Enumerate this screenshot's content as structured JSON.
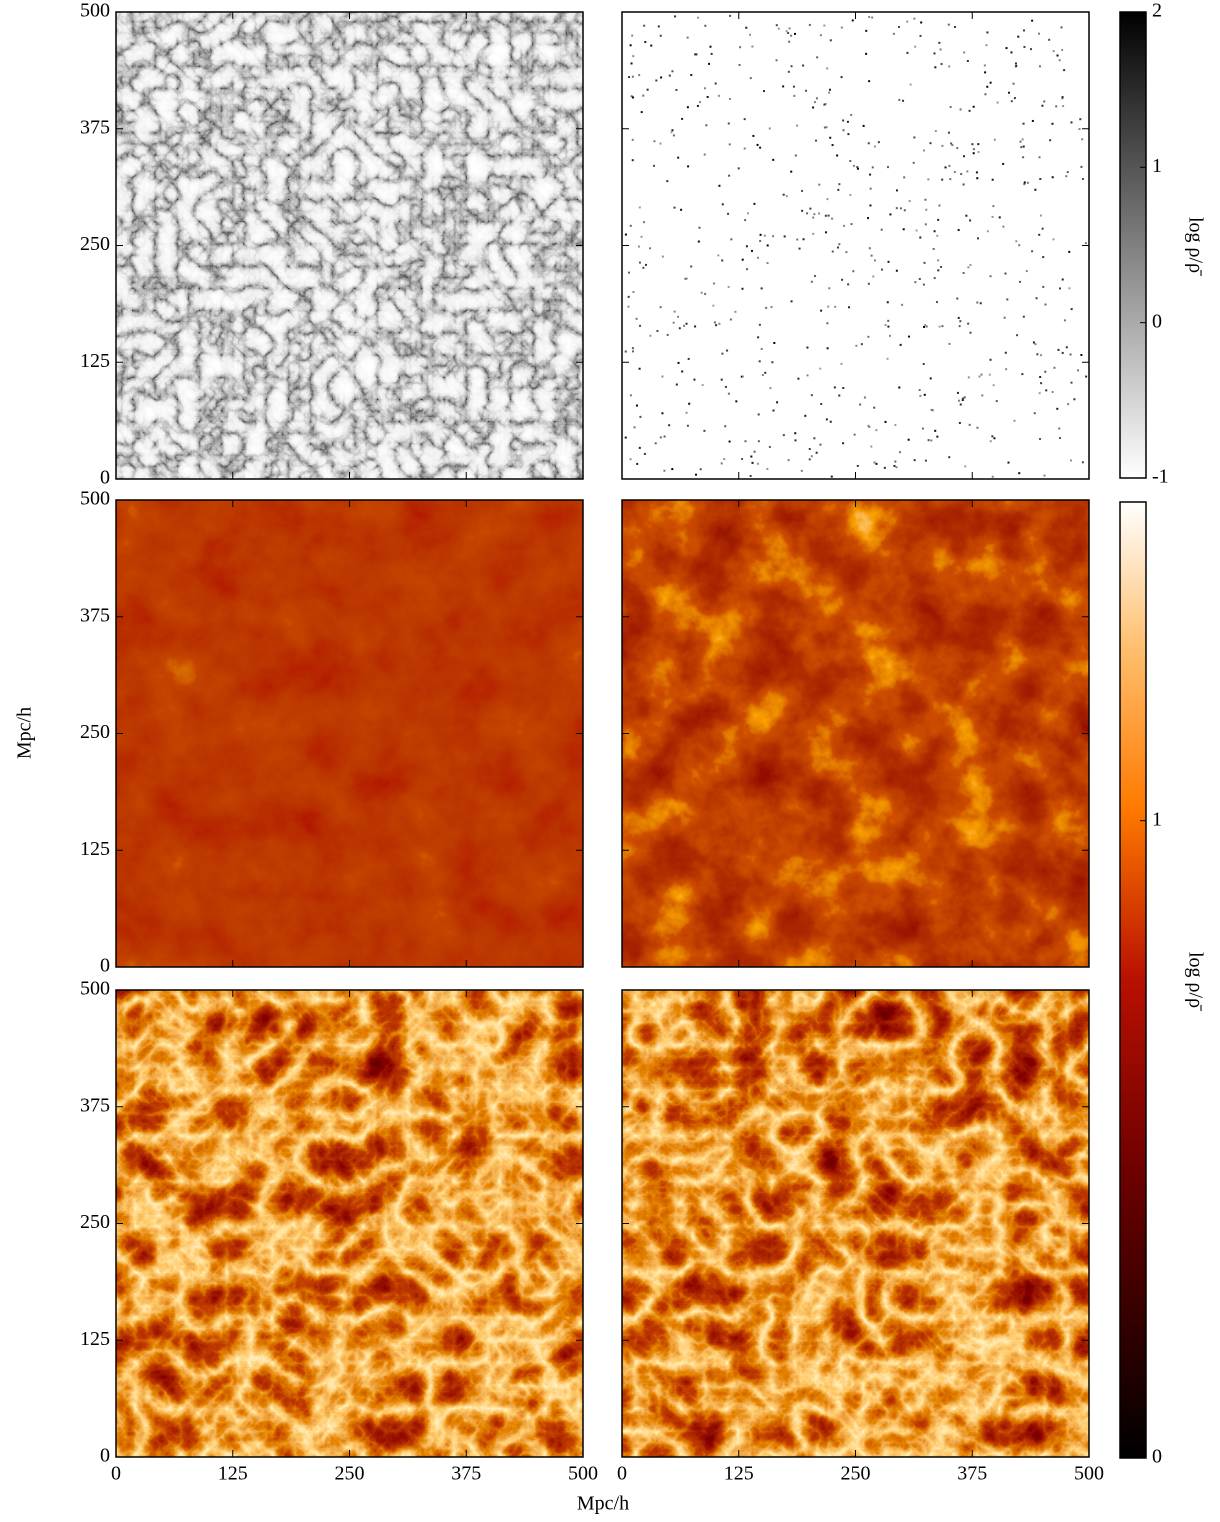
{
  "chart_data": {
    "type": "heatmap-grid",
    "xlabel": "Mpc/h",
    "ylabel": "Mpc/h",
    "xlim": [
      0,
      500
    ],
    "ylim": [
      0,
      500
    ],
    "xticks": [
      0,
      125,
      250,
      375,
      500
    ],
    "yticks": [
      0,
      125,
      250,
      375,
      500
    ],
    "colorbars": [
      {
        "label": "log ρ/ρ̄",
        "lim": [
          -1,
          2
        ],
        "ticks": [
          -1,
          0,
          1,
          2
        ],
        "colormap": "gray"
      },
      {
        "label": "log ρ/ρ̄",
        "lim": [
          0,
          1.5
        ],
        "ticks": [
          0,
          1
        ],
        "colormap": "gist_heat"
      }
    ]
  }
}
